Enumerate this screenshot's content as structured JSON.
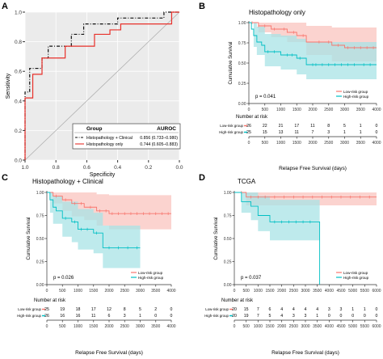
{
  "colors": {
    "red": "#f8766d",
    "teal": "#00bfc4",
    "red_band": "#f9c4bf",
    "teal_band": "#a8e3e5",
    "roc_black": "#111111",
    "roc_red": "#e8302a"
  },
  "chart_data": [
    {
      "id": "A",
      "panel_letter": "A",
      "type": "line",
      "title": "",
      "xlabel": "Specificity",
      "ylabel": "Sensitivity",
      "x_reversed": true,
      "xlim": [
        1.0,
        0.0
      ],
      "ylim": [
        0.0,
        1.0
      ],
      "x_ticks": [
        "1.0",
        "0.8",
        "0.6",
        "0.4",
        "0.2",
        "0.0"
      ],
      "y_ticks": [
        "0.0",
        "0.2",
        "0.4",
        "0.6",
        "0.8",
        "1.0"
      ],
      "legend": {
        "placement": "bottom-right",
        "group_header": "Group",
        "metric_header": "AUROC",
        "entries": [
          {
            "name": "Histopathology + Clinical",
            "value": "0.856 (0.733–0.980)",
            "style": "dash-dot",
            "color": "#111111"
          },
          {
            "name": "Histopathology only",
            "value": "0.744 (0.605–0.883)",
            "style": "solid",
            "color": "#e8302a"
          }
        ]
      },
      "series": [
        {
          "name": "Histopathology + Clinical",
          "points": [
            [
              1.0,
              0.0
            ],
            [
              1.0,
              0.46
            ],
            [
              0.97,
              0.46
            ],
            [
              0.97,
              0.62
            ],
            [
              0.89,
              0.62
            ],
            [
              0.89,
              0.69
            ],
            [
              0.85,
              0.69
            ],
            [
              0.85,
              0.77
            ],
            [
              0.7,
              0.77
            ],
            [
              0.7,
              0.85
            ],
            [
              0.62,
              0.85
            ],
            [
              0.62,
              0.92
            ],
            [
              0.5,
              0.92
            ],
            [
              0.5,
              0.92
            ],
            [
              0.4,
              0.92
            ],
            [
              0.4,
              0.96
            ],
            [
              0.1,
              0.96
            ],
            [
              0.1,
              1.0
            ],
            [
              0.0,
              1.0
            ]
          ]
        },
        {
          "name": "Histopathology only",
          "points": [
            [
              1.0,
              0.0
            ],
            [
              1.0,
              0.42
            ],
            [
              0.95,
              0.42
            ],
            [
              0.95,
              0.58
            ],
            [
              0.89,
              0.58
            ],
            [
              0.89,
              0.69
            ],
            [
              0.74,
              0.69
            ],
            [
              0.74,
              0.77
            ],
            [
              0.55,
              0.77
            ],
            [
              0.55,
              0.85
            ],
            [
              0.45,
              0.85
            ],
            [
              0.45,
              0.88
            ],
            [
              0.38,
              0.88
            ],
            [
              0.38,
              0.92
            ],
            [
              0.2,
              0.92
            ],
            [
              0.2,
              0.92
            ],
            [
              0.05,
              0.92
            ],
            [
              0.05,
              1.0
            ],
            [
              0.0,
              1.0
            ]
          ]
        }
      ]
    },
    {
      "id": "B",
      "panel_letter": "B",
      "type": "line",
      "title": "Histopathology only",
      "xlabel": "Relapse Free Survival (days)",
      "ylabel": "Cumulative Survival",
      "xlim": [
        0,
        4000
      ],
      "ylim": [
        0.0,
        1.0
      ],
      "x_ticks": [
        "0",
        "500",
        "1000",
        "1500",
        "2000",
        "2500",
        "3000",
        "3500",
        "4000"
      ],
      "y_ticks": [
        "0.00",
        "0.25",
        "0.50",
        "0.75",
        "1.00"
      ],
      "pvalue": "p = 0.041",
      "legend": {
        "placement": "bottom-right",
        "entries": [
          "Low-risk group",
          "High-risk group"
        ]
      },
      "series": [
        {
          "name": "Low-risk group",
          "color": "#f8766d",
          "steps": [
            [
              0,
              1.0
            ],
            [
              300,
              0.96
            ],
            [
              700,
              0.92
            ],
            [
              1200,
              0.88
            ],
            [
              1500,
              0.84
            ],
            [
              1800,
              0.76
            ],
            [
              2600,
              0.72
            ],
            [
              3000,
              0.69
            ],
            [
              4000,
              0.69
            ]
          ],
          "ci_upper": [
            [
              0,
              1.0
            ],
            [
              300,
              1.0
            ],
            [
              1200,
              1.0
            ],
            [
              1800,
              0.96
            ],
            [
              2600,
              0.94
            ],
            [
              4000,
              0.92
            ]
          ],
          "ci_lower": [
            [
              0,
              1.0
            ],
            [
              300,
              0.88
            ],
            [
              700,
              0.82
            ],
            [
              1200,
              0.76
            ],
            [
              1800,
              0.6
            ],
            [
              2600,
              0.52
            ],
            [
              4000,
              0.48
            ]
          ],
          "censor": [
            100,
            300,
            500,
            800,
            1100,
            1400,
            1700,
            2200,
            2500,
            2800,
            3100,
            3300,
            3500,
            3700,
            3900
          ]
        },
        {
          "name": "High-risk group",
          "color": "#00bfc4",
          "steps": [
            [
              0,
              1.0
            ],
            [
              80,
              0.92
            ],
            [
              150,
              0.84
            ],
            [
              250,
              0.76
            ],
            [
              400,
              0.72
            ],
            [
              500,
              0.64
            ],
            [
              1000,
              0.6
            ],
            [
              1500,
              0.56
            ],
            [
              1800,
              0.48
            ],
            [
              4000,
              0.48
            ]
          ],
          "ci_upper": [
            [
              0,
              1.0
            ],
            [
              250,
              0.95
            ],
            [
              500,
              0.86
            ],
            [
              1000,
              0.84
            ],
            [
              1500,
              0.8
            ],
            [
              1800,
              0.76
            ],
            [
              4000,
              0.76
            ]
          ],
          "ci_lower": [
            [
              0,
              1.0
            ],
            [
              150,
              0.7
            ],
            [
              250,
              0.6
            ],
            [
              500,
              0.46
            ],
            [
              1000,
              0.42
            ],
            [
              1500,
              0.36
            ],
            [
              1800,
              0.3
            ],
            [
              4000,
              0.28
            ]
          ],
          "censor": [
            600,
            800,
            1200,
            1350,
            1600,
            2000,
            2100,
            2300,
            2500,
            2700,
            2900,
            3100,
            3300,
            3600,
            3800
          ]
        }
      ],
      "risk_table": {
        "header": "Number at risk",
        "rows": [
          {
            "label": "Low-risk group",
            "values": [
              "26",
              "22",
              "21",
              "17",
              "11",
              "8",
              "5",
              "1",
              "0"
            ]
          },
          {
            "label": "High-risk group",
            "values": [
              "25",
              "15",
              "13",
              "11",
              "7",
              "3",
              "1",
              "1",
              "0"
            ]
          }
        ]
      }
    },
    {
      "id": "C",
      "panel_letter": "C",
      "type": "line",
      "title": "Histopathology + Clinical",
      "xlabel": "Relapse Free Survival (days)",
      "ylabel": "Cumulative Survival",
      "xlim": [
        0,
        4000
      ],
      "ylim": [
        0.0,
        1.0
      ],
      "x_ticks": [
        "0",
        "500",
        "1000",
        "1500",
        "2000",
        "2500",
        "3000",
        "3500",
        "4000"
      ],
      "y_ticks": [
        "0.00",
        "0.25",
        "0.50",
        "0.75",
        "1.00"
      ],
      "pvalue": "p = 0.026",
      "legend": {
        "placement": "bottom-right",
        "entries": [
          "Low-risk group",
          "High-risk group"
        ]
      },
      "series": [
        {
          "name": "Low-risk group",
          "color": "#f8766d",
          "steps": [
            [
              0,
              1.0
            ],
            [
              200,
              0.96
            ],
            [
              500,
              0.92
            ],
            [
              800,
              0.88
            ],
            [
              1200,
              0.84
            ],
            [
              1600,
              0.8
            ],
            [
              2000,
              0.77
            ],
            [
              4000,
              0.77
            ]
          ],
          "ci_upper": [
            [
              0,
              1.0
            ],
            [
              800,
              1.0
            ],
            [
              1600,
              0.98
            ],
            [
              2000,
              0.97
            ],
            [
              4000,
              0.97
            ]
          ],
          "ci_lower": [
            [
              0,
              1.0
            ],
            [
              200,
              0.88
            ],
            [
              500,
              0.8
            ],
            [
              800,
              0.74
            ],
            [
              1200,
              0.7
            ],
            [
              1600,
              0.64
            ],
            [
              2000,
              0.6
            ],
            [
              4000,
              0.58
            ]
          ],
          "censor": [
            300,
            600,
            900,
            1100,
            1400,
            1700,
            1900,
            2100,
            2300,
            2500,
            2700,
            2900,
            3100,
            3300,
            3500,
            3700,
            3900
          ]
        },
        {
          "name": "High-risk group",
          "color": "#00bfc4",
          "steps": [
            [
              0,
              1.0
            ],
            [
              100,
              0.92
            ],
            [
              200,
              0.84
            ],
            [
              300,
              0.8
            ],
            [
              500,
              0.72
            ],
            [
              800,
              0.68
            ],
            [
              1000,
              0.6
            ],
            [
              1500,
              0.56
            ],
            [
              1800,
              0.4
            ],
            [
              3000,
              0.4
            ]
          ],
          "ci_upper": [
            [
              0,
              1.0
            ],
            [
              200,
              0.96
            ],
            [
              500,
              0.9
            ],
            [
              1000,
              0.82
            ],
            [
              1500,
              0.78
            ],
            [
              1800,
              0.64
            ],
            [
              3000,
              0.64
            ]
          ],
          "ci_lower": [
            [
              0,
              1.0
            ],
            [
              100,
              0.78
            ],
            [
              200,
              0.66
            ],
            [
              500,
              0.52
            ],
            [
              800,
              0.46
            ],
            [
              1000,
              0.38
            ],
            [
              1500,
              0.34
            ],
            [
              1800,
              0.18
            ],
            [
              3000,
              0.16
            ]
          ],
          "censor": [
            600,
            900,
            1100,
            1300,
            1600,
            2000,
            2300,
            2600,
            2900
          ]
        }
      ],
      "risk_table": {
        "header": "Number at risk",
        "rows": [
          {
            "label": "Low-risk group",
            "values": [
              "25",
              "19",
              "18",
              "17",
              "12",
              "8",
              "5",
              "2",
              "0"
            ]
          },
          {
            "label": "High-risk group",
            "values": [
              "26",
              "16",
              "16",
              "11",
              "6",
              "3",
              "1",
              "0",
              "0"
            ]
          }
        ]
      }
    },
    {
      "id": "D",
      "panel_letter": "D",
      "type": "line",
      "title": "TCGA",
      "xlabel": "Relapse Free Survival (days)",
      "ylabel": "Cumulative Survival",
      "xlim": [
        0,
        6000
      ],
      "ylim": [
        0.0,
        1.0
      ],
      "x_ticks": [
        "0",
        "500",
        "1000",
        "1500",
        "2000",
        "2500",
        "3000",
        "3500",
        "4000",
        "4500",
        "5000",
        "5500",
        "6000"
      ],
      "y_ticks": [
        "0.00",
        "0.25",
        "0.50",
        "0.75",
        "1.00"
      ],
      "pvalue": "p = 0.037",
      "legend": {
        "placement": "bottom-right",
        "entries": [
          "Low-risk group",
          "High-risk group"
        ]
      },
      "series": [
        {
          "name": "Low-risk group",
          "color": "#f8766d",
          "steps": [
            [
              0,
              1.0
            ],
            [
              500,
              0.95
            ],
            [
              6000,
              0.95
            ]
          ],
          "ci_upper": [
            [
              0,
              1.0
            ],
            [
              6000,
              1.0
            ]
          ],
          "ci_lower": [
            [
              0,
              1.0
            ],
            [
              500,
              0.86
            ],
            [
              6000,
              0.86
            ]
          ],
          "censor": [
            300,
            700,
            1000,
            1300,
            1700,
            2100,
            2500,
            2900,
            3300,
            3700,
            4100,
            4500,
            4900,
            5300,
            5700
          ]
        },
        {
          "name": "High-risk group",
          "color": "#00bfc4",
          "steps": [
            [
              0,
              1.0
            ],
            [
              300,
              0.9
            ],
            [
              700,
              0.85
            ],
            [
              1000,
              0.75
            ],
            [
              1500,
              0.68
            ],
            [
              3600,
              0.68
            ],
            [
              3600,
              0.0
            ]
          ],
          "ci_upper": [
            [
              0,
              1.0
            ],
            [
              300,
              1.0
            ],
            [
              700,
              1.0
            ],
            [
              1000,
              0.96
            ],
            [
              1500,
              0.92
            ],
            [
              3600,
              0.92
            ]
          ],
          "ci_lower": [
            [
              0,
              1.0
            ],
            [
              300,
              0.78
            ],
            [
              700,
              0.7
            ],
            [
              1000,
              0.58
            ],
            [
              1500,
              0.48
            ],
            [
              3600,
              0.45
            ]
          ],
          "censor": [
            1700,
            2000,
            2300,
            2600,
            2900,
            3200
          ]
        }
      ],
      "risk_table": {
        "header": "Number at risk",
        "rows": [
          {
            "label": "Low-risk group",
            "values": [
              "20",
              "15",
              "7",
              "6",
              "4",
              "4",
              "4",
              "4",
              "3",
              "3",
              "1",
              "1",
              "0"
            ]
          },
          {
            "label": "High-risk group",
            "values": [
              "20",
              "19",
              "7",
              "5",
              "4",
              "3",
              "3",
              "1",
              "0",
              "0",
              "0",
              "0",
              "0"
            ]
          }
        ]
      }
    }
  ]
}
